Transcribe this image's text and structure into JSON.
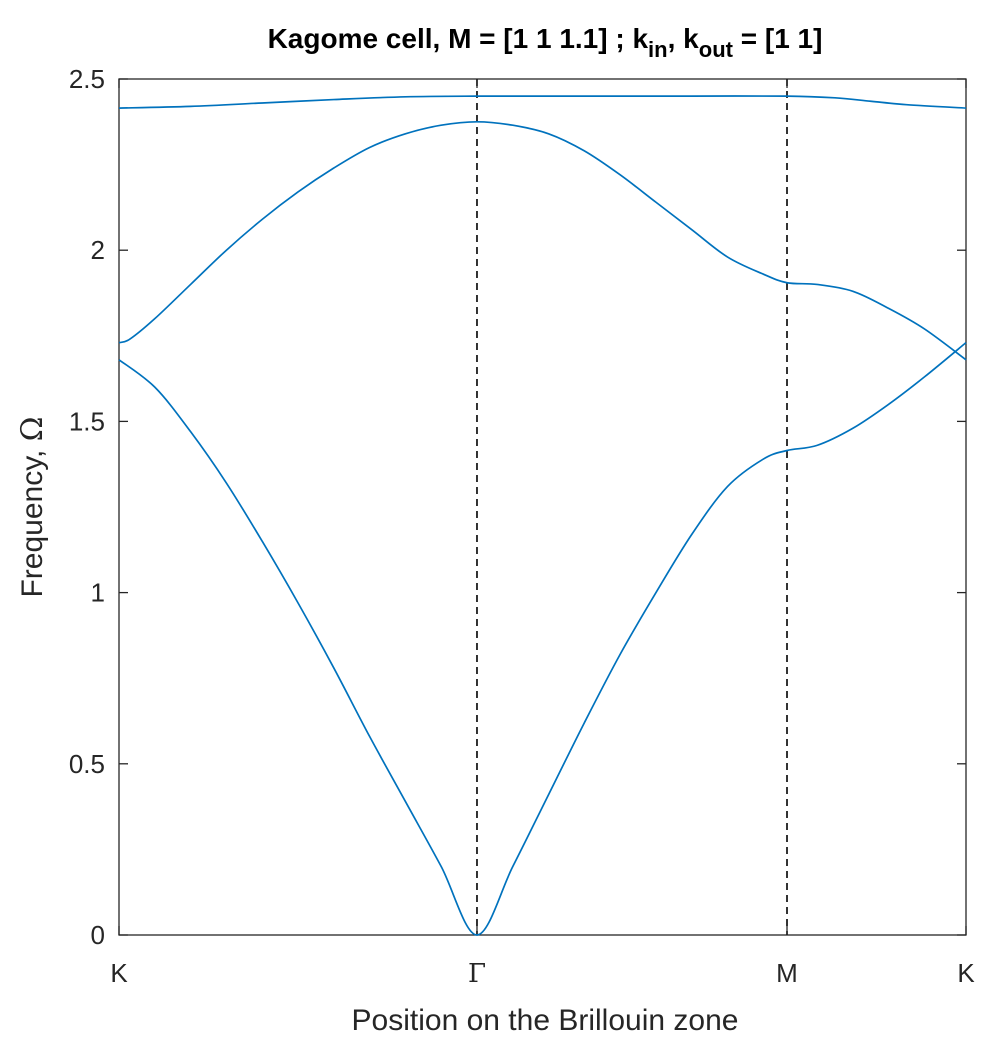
{
  "chart_data": {
    "type": "line",
    "title": "Kagome cell, M = [1 1 1.1] ; k_in, k_out = [1 1]",
    "title_parts": {
      "prefix": "Kagome cell, M = [1 1 1.1] ; k",
      "sub1": "in",
      "middle": ", k",
      "sub2": "out",
      "suffix": " = [1 1]"
    },
    "xlabel": "Position on the Brillouin zone",
    "ylabel": {
      "prefix": "Frequency, ",
      "symbol": "Ω"
    },
    "x_ticks": [
      {
        "label": "K",
        "x": 0
      },
      {
        "label": "Γ",
        "x": 1
      },
      {
        "label": "M",
        "x": 1.866
      },
      {
        "label": "K",
        "x": 2.366
      }
    ],
    "x_range": [
      0,
      2.366
    ],
    "xlim": [
      0,
      2.366
    ],
    "ylim": [
      0,
      2.5
    ],
    "y_ticks": [
      0,
      0.5,
      1,
      1.5,
      2,
      2.5
    ],
    "y_tick_labels": [
      "0",
      "0.5",
      "1",
      "1.5",
      "2",
      "2.5"
    ],
    "vertical_lines": [
      1,
      1.866
    ],
    "series_color": "#0072BD",
    "series": [
      {
        "points": [
          [
            0,
            1.68
          ],
          [
            0.1,
            1.6
          ],
          [
            0.2,
            1.47
          ],
          [
            0.3,
            1.32
          ],
          [
            0.4,
            1.15
          ],
          [
            0.5,
            0.97
          ],
          [
            0.6,
            0.78
          ],
          [
            0.7,
            0.58
          ],
          [
            0.8,
            0.39
          ],
          [
            0.9,
            0.2
          ],
          [
            1.0,
            0.0
          ],
          [
            1.1,
            0.2
          ],
          [
            1.2,
            0.41
          ],
          [
            1.3,
            0.62
          ],
          [
            1.4,
            0.82
          ],
          [
            1.5,
            1.0
          ],
          [
            1.6,
            1.17
          ],
          [
            1.7,
            1.31
          ],
          [
            1.8,
            1.39
          ],
          [
            1.866,
            1.415
          ],
          [
            1.95,
            1.43
          ],
          [
            2.05,
            1.48
          ],
          [
            2.15,
            1.55
          ],
          [
            2.25,
            1.63
          ],
          [
            2.366,
            1.73
          ]
        ]
      },
      {
        "points": [
          [
            0,
            1.73
          ],
          [
            0.03,
            1.74
          ],
          [
            0.1,
            1.8
          ],
          [
            0.2,
            1.9
          ],
          [
            0.3,
            2.0
          ],
          [
            0.4,
            2.09
          ],
          [
            0.5,
            2.17
          ],
          [
            0.6,
            2.24
          ],
          [
            0.7,
            2.3
          ],
          [
            0.8,
            2.34
          ],
          [
            0.9,
            2.365
          ],
          [
            1.0,
            2.375
          ],
          [
            1.1,
            2.365
          ],
          [
            1.2,
            2.34
          ],
          [
            1.3,
            2.29
          ],
          [
            1.4,
            2.22
          ],
          [
            1.5,
            2.14
          ],
          [
            1.6,
            2.06
          ],
          [
            1.7,
            1.98
          ],
          [
            1.8,
            1.93
          ],
          [
            1.866,
            1.905
          ],
          [
            1.95,
            1.9
          ],
          [
            2.05,
            1.88
          ],
          [
            2.15,
            1.83
          ],
          [
            2.25,
            1.77
          ],
          [
            2.366,
            1.68
          ]
        ]
      },
      {
        "points": [
          [
            0,
            2.415
          ],
          [
            0.2,
            2.42
          ],
          [
            0.4,
            2.43
          ],
          [
            0.6,
            2.44
          ],
          [
            0.8,
            2.448
          ],
          [
            1.0,
            2.45
          ],
          [
            1.2,
            2.45
          ],
          [
            1.4,
            2.45
          ],
          [
            1.6,
            2.45
          ],
          [
            1.866,
            2.45
          ],
          [
            2.0,
            2.445
          ],
          [
            2.1,
            2.435
          ],
          [
            2.2,
            2.425
          ],
          [
            2.366,
            2.415
          ]
        ]
      }
    ]
  }
}
